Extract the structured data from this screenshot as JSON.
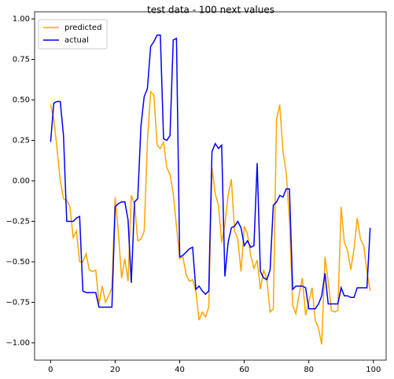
{
  "chart_data": {
    "type": "line",
    "title": "test data - 100 next values",
    "x": [
      0,
      1,
      2,
      3,
      4,
      5,
      6,
      7,
      8,
      9,
      10,
      11,
      12,
      13,
      14,
      15,
      16,
      17,
      18,
      19,
      20,
      21,
      22,
      23,
      24,
      25,
      26,
      27,
      28,
      29,
      30,
      31,
      32,
      33,
      34,
      35,
      36,
      37,
      38,
      39,
      40,
      41,
      42,
      43,
      44,
      45,
      46,
      47,
      48,
      49,
      50,
      51,
      52,
      53,
      54,
      55,
      56,
      57,
      58,
      59,
      60,
      61,
      62,
      63,
      64,
      65,
      66,
      67,
      68,
      69,
      70,
      71,
      72,
      73,
      74,
      75,
      76,
      77,
      78,
      79,
      80,
      81,
      82,
      83,
      84,
      85,
      86,
      87,
      88,
      89,
      90,
      91,
      92,
      93,
      94,
      95,
      96,
      97,
      98,
      99
    ],
    "series": [
      {
        "name": "predicted",
        "color": "#ffa500",
        "values": [
          0.47,
          0.38,
          0.2,
          0.0,
          -0.11,
          -0.12,
          -0.16,
          -0.35,
          -0.31,
          -0.5,
          -0.5,
          -0.45,
          -0.55,
          -0.56,
          -0.55,
          -0.76,
          -0.65,
          -0.75,
          -0.71,
          -0.66,
          -0.1,
          -0.32,
          -0.6,
          -0.48,
          -0.62,
          -0.09,
          -0.14,
          -0.37,
          -0.36,
          -0.31,
          0.24,
          0.55,
          0.53,
          0.22,
          0.2,
          0.24,
          0.08,
          0.04,
          -0.08,
          -0.28,
          -0.48,
          -0.47,
          -0.58,
          -0.62,
          -0.61,
          -0.68,
          -0.86,
          -0.81,
          -0.84,
          -0.78,
          0.08,
          -0.08,
          -0.15,
          -0.38,
          -0.27,
          -0.09,
          0.01,
          -0.31,
          -0.36,
          -0.56,
          -0.28,
          -0.33,
          -0.46,
          -0.54,
          -0.49,
          -0.67,
          -0.55,
          -0.61,
          -0.81,
          -0.79,
          0.38,
          0.47,
          0.18,
          0.05,
          -0.24,
          -0.77,
          -0.82,
          -0.7,
          -0.6,
          -0.83,
          -0.75,
          -0.66,
          -0.86,
          -0.91,
          -1.01,
          -0.47,
          -0.62,
          -0.8,
          -0.81,
          -0.8,
          -0.16,
          -0.38,
          -0.43,
          -0.55,
          -0.42,
          -0.23,
          -0.36,
          -0.4,
          -0.56,
          -0.68
        ]
      },
      {
        "name": "actual",
        "color": "#0000ff",
        "values": [
          0.24,
          0.48,
          0.49,
          0.49,
          0.28,
          -0.25,
          -0.25,
          -0.25,
          -0.23,
          -0.22,
          -0.68,
          -0.69,
          -0.69,
          -0.69,
          -0.69,
          -0.78,
          -0.78,
          -0.78,
          -0.78,
          -0.78,
          -0.16,
          -0.14,
          -0.13,
          -0.13,
          -0.24,
          -0.63,
          -0.13,
          -0.11,
          0.34,
          0.52,
          0.57,
          0.83,
          0.86,
          0.9,
          0.9,
          0.26,
          0.25,
          0.28,
          0.87,
          0.88,
          -0.47,
          -0.46,
          -0.44,
          -0.42,
          -0.41,
          -0.67,
          -0.65,
          -0.68,
          -0.7,
          -0.68,
          0.18,
          0.23,
          0.2,
          0.22,
          -0.59,
          -0.38,
          -0.29,
          -0.28,
          -0.25,
          -0.29,
          -0.4,
          -0.37,
          -0.41,
          -0.4,
          0.11,
          -0.56,
          -0.6,
          -0.61,
          -0.55,
          -0.15,
          -0.13,
          -0.09,
          -0.1,
          -0.05,
          -0.05,
          -0.67,
          -0.65,
          -0.65,
          -0.65,
          -0.66,
          -0.79,
          -0.79,
          -0.79,
          -0.76,
          -0.71,
          -0.57,
          -0.76,
          -0.76,
          -0.76,
          -0.76,
          -0.66,
          -0.71,
          -0.71,
          -0.72,
          -0.72,
          -0.66,
          -0.66,
          -0.66,
          -0.66,
          -0.29
        ]
      }
    ],
    "xlim": [
      -4.95,
      103.95
    ],
    "xticks": [
      0,
      20,
      40,
      60,
      80,
      100
    ],
    "ylim": [
      -1.107,
      1.044
    ],
    "yticks": [
      {
        "value": -1,
        "label": "−1.00"
      },
      {
        "value": -0.75,
        "label": "−0.75"
      },
      {
        "value": -0.5,
        "label": "−0.50"
      },
      {
        "value": -0.25,
        "label": "−0.25"
      },
      {
        "value": 0,
        "label": "0.00"
      },
      {
        "value": 0.25,
        "label": "0.25"
      },
      {
        "value": 0.5,
        "label": "0.50"
      },
      {
        "value": 0.75,
        "label": "0.75"
      },
      {
        "value": 1,
        "label": "1.00"
      }
    ],
    "legend": "upper left"
  }
}
